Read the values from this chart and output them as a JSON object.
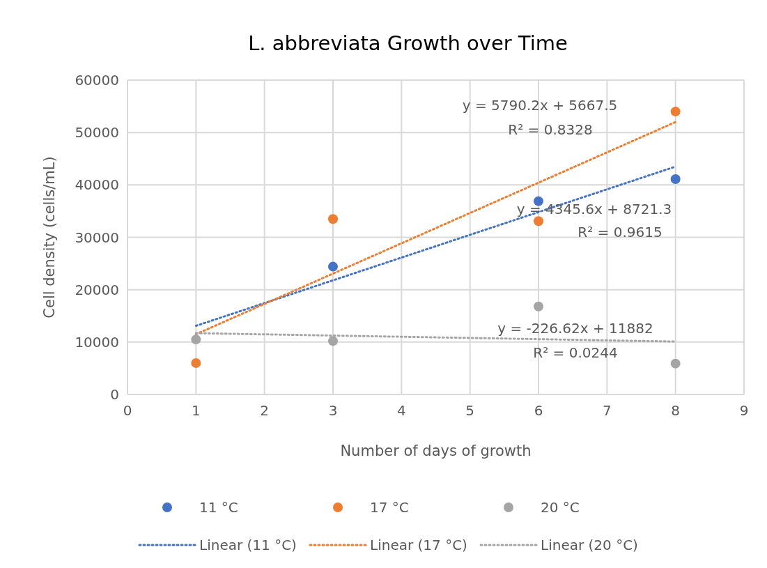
{
  "chart_data": {
    "type": "scatter",
    "title": "L. abbreviata Growth over Time",
    "xlabel": "Number  of days of growth",
    "ylabel": "Cell density (cells/mL)",
    "xlim": [
      0,
      9
    ],
    "xticks": [
      0,
      1,
      2,
      3,
      4,
      5,
      6,
      7,
      8,
      9
    ],
    "ylim": [
      0,
      60000
    ],
    "yticks": [
      0,
      10000,
      20000,
      30000,
      40000,
      50000,
      60000
    ],
    "grid": true,
    "legend": "bottom",
    "marker": "circle",
    "series": [
      {
        "name": "11 °C",
        "color": "#4472c4",
        "x": [
          3,
          6,
          8
        ],
        "values": [
          24400,
          36900,
          41100
        ]
      },
      {
        "name": "17 °C",
        "color": "#ed7d31",
        "x": [
          1,
          3,
          6,
          8
        ],
        "values": [
          6000,
          33500,
          33100,
          54000
        ]
      },
      {
        "name": "20 °C",
        "color": "#a5a5a5",
        "x": [
          1,
          3,
          6,
          8
        ],
        "values": [
          10500,
          10200,
          16800,
          5900
        ]
      },
      {
        "name": "Linear (11 °C)",
        "type": "line",
        "line_style": "dotted",
        "marker": "none",
        "color": "#4472c4",
        "x": [
          1,
          8
        ],
        "values": [
          13100,
          43500
        ]
      },
      {
        "name": "Linear (17 °C)",
        "type": "line",
        "line_style": "dotted",
        "marker": "none",
        "color": "#ed7d31",
        "x": [
          1,
          8
        ],
        "values": [
          11500,
          52000
        ]
      },
      {
        "name": "Linear (20 °C)",
        "type": "line",
        "line_style": "dotted",
        "marker": "none",
        "color": "#a5a5a5",
        "x": [
          1,
          8
        ],
        "values": [
          11700,
          10100
        ]
      }
    ],
    "annotations": [
      "y = 5790.2x + 5667.5",
      "R² = 0.8328",
      "y = 4345.6x + 8721.3",
      "R² = 0.9615",
      "y = -226.62x + 11882",
      "R² = 0.0244"
    ]
  }
}
